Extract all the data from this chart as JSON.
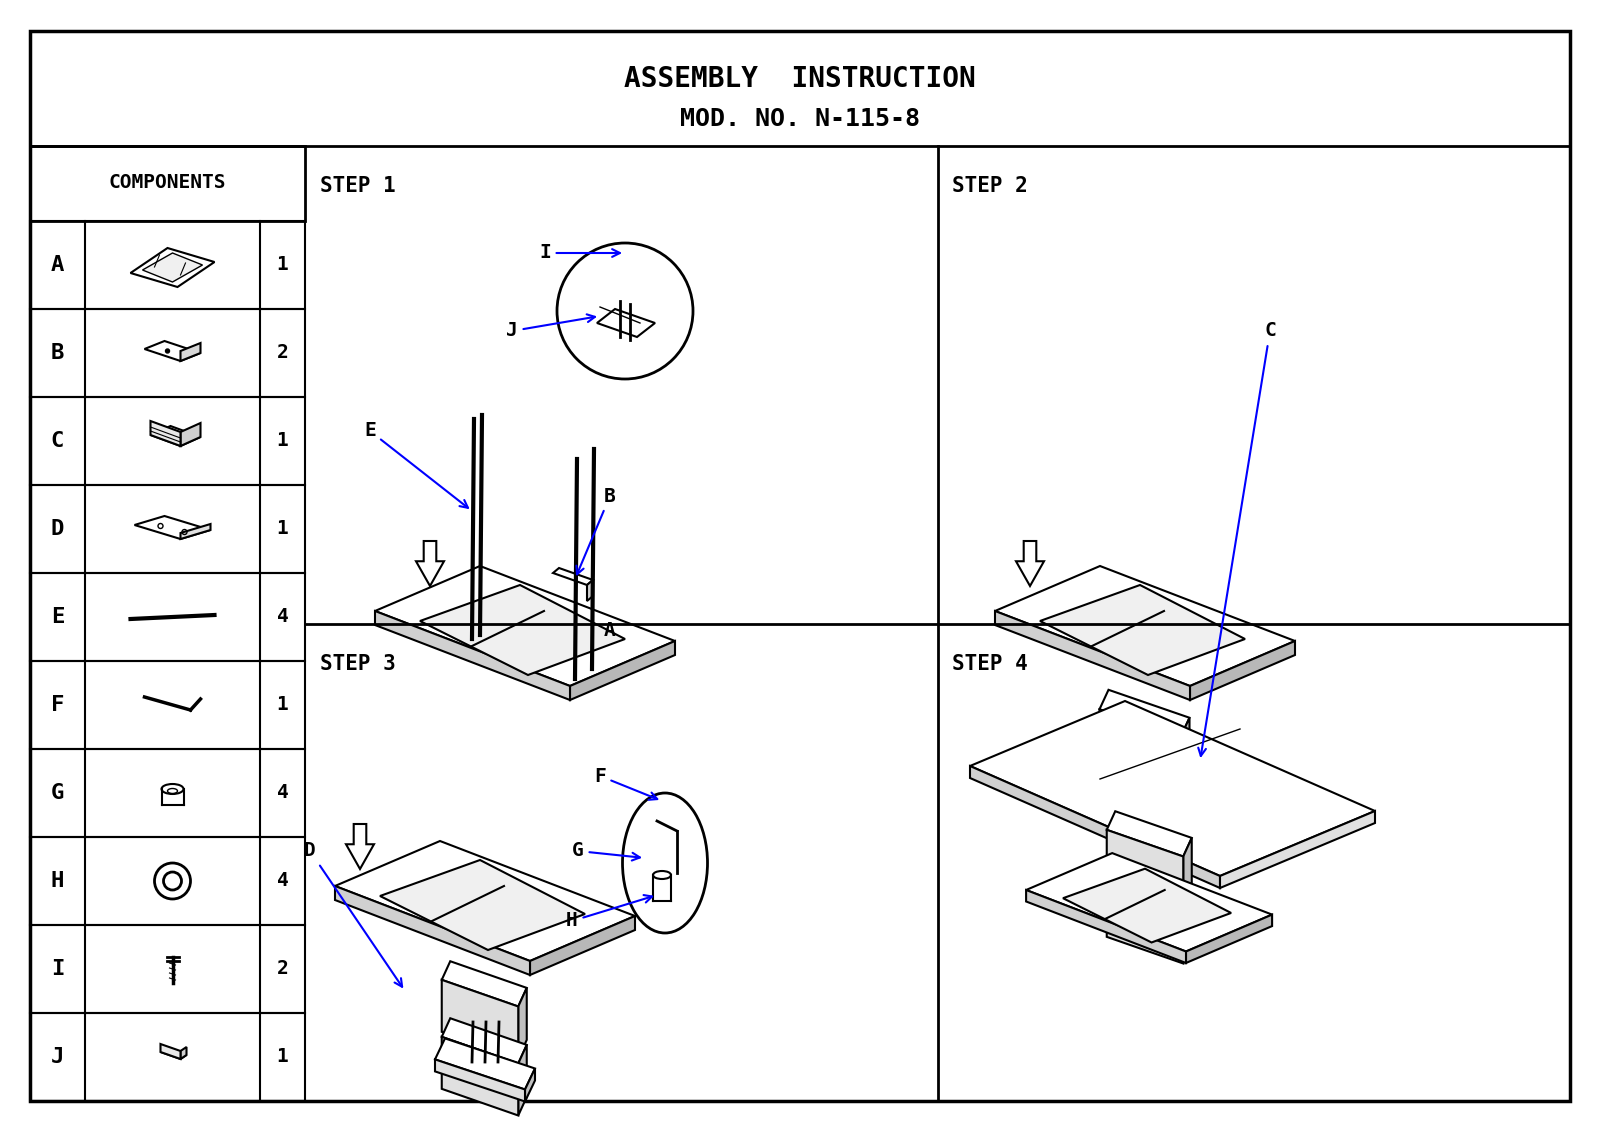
{
  "title_line1": "ASSEMBLY  INSTRUCTION",
  "title_line2": "MOD. NO. N-115-8",
  "bg_color": "#ffffff",
  "line_color": "#000000",
  "blue_color": "#0000ff",
  "components": [
    "A",
    "B",
    "C",
    "D",
    "E",
    "F",
    "G",
    "H",
    "I",
    "J"
  ],
  "quantities": [
    1,
    2,
    1,
    1,
    4,
    1,
    4,
    4,
    2,
    1
  ],
  "step_labels": [
    "STEP 1",
    "STEP 2",
    "STEP 3",
    "STEP 4"
  ]
}
